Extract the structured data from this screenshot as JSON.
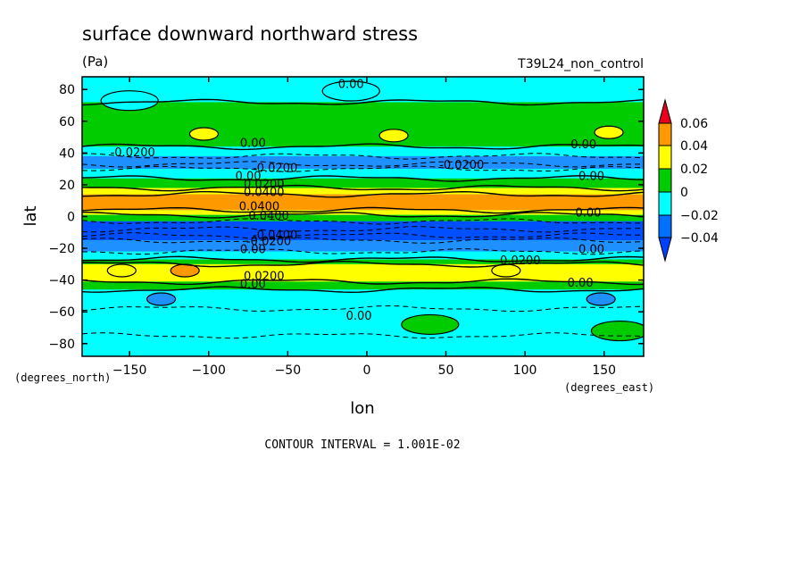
{
  "chart_data": {
    "type": "heatmap",
    "title": "surface downward northward stress",
    "units": "(Pa)",
    "dataset": "T39L24_non_control",
    "xlabel": "lon",
    "ylabel": "lat",
    "x_units": "(degrees_east)",
    "y_units": "(degrees_north)",
    "xlim": [
      -180,
      175
    ],
    "ylim": [
      -88,
      88
    ],
    "x_ticks": [
      -150,
      -100,
      -50,
      0,
      50,
      100,
      150
    ],
    "x_tick_labels": [
      "−150",
      "−100",
      "−50",
      "0",
      "50",
      "100",
      "150"
    ],
    "y_ticks": [
      80,
      60,
      40,
      20,
      0,
      -20,
      -40,
      -60,
      -80
    ],
    "y_tick_labels": [
      "80",
      "60",
      "40",
      "20",
      "0",
      "−20",
      "−40",
      "−60",
      "−80"
    ],
    "footnote": "CONTOUR INTERVAL = 1.001E-02",
    "colorbar": {
      "levels": [
        0.06,
        0.04,
        0.02,
        0,
        -0.02,
        -0.04
      ],
      "labels": [
        "0.06",
        "0.04",
        "0.02",
        "0",
        "−0.02",
        "−0.04"
      ],
      "colors": [
        "#e8001c",
        "#ff9900",
        "#ffff00",
        "#00cc00",
        "#00ffff",
        "#0070ff",
        "#0040ff"
      ]
    },
    "band_colors": {
      "gt_0.04": "#ff9900",
      "0.02_0.04": "#ffff00",
      "0_0.02": "#00cc00",
      "m0.02_0": "#00ffff",
      "m0.04_m0.02": "#1e90ff",
      "lt_m0.04": "#0050ff"
    },
    "zonal_bands": [
      {
        "lat": [
          60,
          88
        ],
        "range": "m0.02_0"
      },
      {
        "lat": [
          44,
          72
        ],
        "range": "0_0.02"
      },
      {
        "lat": [
          38,
          44
        ],
        "range": "m0.02_0"
      },
      {
        "lat": [
          30,
          38
        ],
        "range": "m0.04_m0.02"
      },
      {
        "lat": [
          24,
          30
        ],
        "range": "m0.02_0"
      },
      {
        "lat": [
          18,
          24
        ],
        "range": "0_0.02"
      },
      {
        "lat": [
          14,
          18
        ],
        "range": "0.02_0.04"
      },
      {
        "lat": [
          4,
          14
        ],
        "range": "gt_0.04"
      },
      {
        "lat": [
          1,
          4
        ],
        "range": "0.02_0.04"
      },
      {
        "lat": [
          -3,
          1
        ],
        "range": "0_0.02"
      },
      {
        "lat": [
          -15,
          -3
        ],
        "range": "lt_m0.04"
      },
      {
        "lat": [
          -22,
          -15
        ],
        "range": "m0.04_m0.02"
      },
      {
        "lat": [
          -27,
          -22
        ],
        "range": "m0.02_0"
      },
      {
        "lat": [
          -30,
          -27
        ],
        "range": "0_0.02"
      },
      {
        "lat": [
          -41,
          -30
        ],
        "range": "0.02_0.04"
      },
      {
        "lat": [
          -46,
          -41
        ],
        "range": "0_0.02"
      },
      {
        "lat": [
          -88,
          -46
        ],
        "range": "m0.02_0"
      }
    ],
    "features": [
      {
        "range": "m0.02_0",
        "lon": -150,
        "lat": 73
      },
      {
        "range": "m0.02_0",
        "lon": -10,
        "lat": 79
      },
      {
        "range": "0.02_0.04",
        "lon": -103,
        "lat": 52
      },
      {
        "range": "0.02_0.04",
        "lon": 17,
        "lat": 51
      },
      {
        "range": "0.02_0.04",
        "lon": 153,
        "lat": 53
      },
      {
        "range": "0.02_0.04",
        "lon": -155,
        "lat": -34
      },
      {
        "range": "0.02_0.04",
        "lon": 88,
        "lat": -34
      },
      {
        "range": "gt_0.04",
        "lon": -115,
        "lat": -34
      },
      {
        "range": "m0.04_m0.02",
        "lon": -130,
        "lat": -52
      },
      {
        "range": "m0.04_m0.02",
        "lon": 148,
        "lat": -52
      },
      {
        "range": "0_0.02",
        "lon": 40,
        "lat": -68
      },
      {
        "range": "0_0.02",
        "lon": 160,
        "lat": -72
      }
    ],
    "contour_labels": [
      {
        "text": "0.00",
        "lon": -10,
        "lat": 81
      },
      {
        "text": "0.00",
        "lon": -72,
        "lat": 44
      },
      {
        "text": "0.00",
        "lon": 137,
        "lat": 43
      },
      {
        "text": "-0.0200",
        "lon": -148,
        "lat": 38
      },
      {
        "text": "-0.0200",
        "lon": 60,
        "lat": 30
      },
      {
        "text": "-0.0200",
        "lon": -58,
        "lat": 28
      },
      {
        "text": "0.00",
        "lon": -75,
        "lat": 23
      },
      {
        "text": "0.00",
        "lon": 142,
        "lat": 23
      },
      {
        "text": "0.0200",
        "lon": -65,
        "lat": 18
      },
      {
        "text": "0.0400",
        "lon": -65,
        "lat": 13
      },
      {
        "text": "0.0400",
        "lon": -68,
        "lat": 4
      },
      {
        "text": "0.0400",
        "lon": -62,
        "lat": -2
      },
      {
        "text": "0.00",
        "lon": 140,
        "lat": 0
      },
      {
        "text": "-0.0400",
        "lon": -58,
        "lat": -14
      },
      {
        "text": "-0.0200",
        "lon": -62,
        "lat": -18
      },
      {
        "text": "0.00",
        "lon": -72,
        "lat": -23
      },
      {
        "text": "0.00",
        "lon": 142,
        "lat": -23
      },
      {
        "text": "0.0200",
        "lon": 97,
        "lat": -30
      },
      {
        "text": "0.0200",
        "lon": -65,
        "lat": -40
      },
      {
        "text": "0.00",
        "lon": -72,
        "lat": -45
      },
      {
        "text": "0.00",
        "lon": 135,
        "lat": -44
      },
      {
        "text": "0.00",
        "lon": -5,
        "lat": -65
      }
    ]
  }
}
